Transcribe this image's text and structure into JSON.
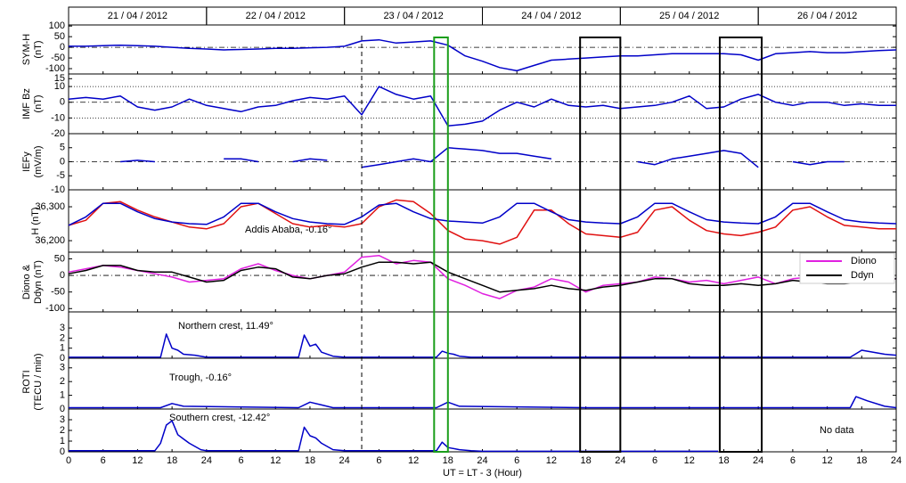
{
  "dates": [
    "21 / 04 / 2012",
    "22 / 04 / 2012",
    "23 / 04 / 2012",
    "24 / 04 / 2012",
    "25 / 04 / 2012",
    "26 / 04 / 2012"
  ],
  "highlights": {
    "dashed": 51,
    "boxes": [
      {
        "xlim": [
          63.6,
          66
        ],
        "color": "#1a9e1a"
      },
      {
        "xlim": [
          89,
          96
        ],
        "color": "#000000"
      },
      {
        "xlim": [
          113.3,
          120.6
        ],
        "color": "#000000"
      }
    ]
  },
  "chart_data": [
    {
      "type": "line",
      "ylabel": [
        "SYM-H",
        "(nT)"
      ],
      "ylim": [
        -125,
        105
      ],
      "yticks": [
        100,
        50,
        0,
        -50,
        -100
      ],
      "hlines": [
        0
      ],
      "x": [
        0,
        3,
        6,
        9,
        12,
        15,
        18,
        21,
        24,
        27,
        30,
        33,
        36,
        39,
        42,
        45,
        48,
        51,
        54,
        57,
        60,
        63,
        66,
        69,
        72,
        75,
        78,
        81,
        84,
        87,
        90,
        93,
        96,
        99,
        102,
        105,
        108,
        111,
        114,
        117,
        120,
        123,
        126,
        129,
        132,
        135,
        138,
        141,
        144
      ],
      "series": [
        {
          "color": "#0000c8",
          "values": [
            5,
            5,
            8,
            10,
            8,
            5,
            0,
            -5,
            -8,
            -12,
            -10,
            -8,
            -5,
            -5,
            -2,
            0,
            5,
            30,
            35,
            20,
            25,
            30,
            10,
            -40,
            -65,
            -95,
            -110,
            -85,
            -60,
            -55,
            -50,
            -45,
            -40,
            -40,
            -35,
            -30,
            -30,
            -30,
            -30,
            -35,
            -60,
            -30,
            -25,
            -20,
            -25,
            -25,
            -20,
            -15,
            -12
          ]
        }
      ]
    },
    {
      "type": "line",
      "ylabel": [
        "IMF Bz",
        "(nT)"
      ],
      "ylim": [
        -20,
        18
      ],
      "yticks": [
        15,
        10,
        0,
        -10,
        -20
      ],
      "hlines": [
        10,
        0,
        -10
      ],
      "x": [
        0,
        3,
        6,
        9,
        12,
        15,
        18,
        21,
        24,
        27,
        30,
        33,
        36,
        39,
        42,
        45,
        48,
        51,
        54,
        57,
        60,
        63,
        66,
        69,
        72,
        75,
        78,
        81,
        84,
        87,
        90,
        93,
        96,
        99,
        102,
        105,
        108,
        111,
        114,
        117,
        120,
        123,
        126,
        129,
        132,
        135,
        138,
        141,
        144
      ],
      "series": [
        {
          "color": "#0000c8",
          "values": [
            2,
            3,
            2,
            4,
            -3,
            -5,
            -3,
            2,
            -2,
            -4,
            -6,
            -3,
            -2,
            1,
            3,
            2,
            4,
            -8,
            10,
            5,
            2,
            4,
            -15,
            -14,
            -12,
            -5,
            0,
            -3,
            2,
            -2,
            -3,
            -2,
            -4,
            -3,
            -2,
            0,
            4,
            -4,
            -3,
            2,
            5,
            0,
            -2,
            0,
            0,
            -2,
            -1,
            -2,
            -2
          ]
        }
      ]
    },
    {
      "type": "line",
      "ylabel": [
        "IEFy",
        "(mV/m)"
      ],
      "ylim": [
        -10,
        10
      ],
      "yticks": [
        5,
        0,
        -5,
        -10
      ],
      "hlines": [
        0
      ],
      "x": [
        0,
        3,
        6,
        9,
        12,
        15,
        18,
        21,
        24,
        27,
        30,
        33,
        36,
        39,
        42,
        45,
        48,
        51,
        54,
        57,
        60,
        63,
        66,
        69,
        72,
        75,
        78,
        81,
        84,
        87,
        90,
        93,
        96,
        99,
        102,
        105,
        108,
        111,
        114,
        117,
        120,
        123,
        126,
        129,
        132,
        135,
        138,
        141,
        144
      ],
      "series": [
        {
          "color": "#0000c8",
          "values": [
            null,
            null,
            null,
            0,
            0.5,
            0,
            null,
            null,
            null,
            1,
            1,
            0,
            null,
            0,
            1,
            0.5,
            null,
            -2,
            -1,
            0,
            1,
            0,
            5,
            4.5,
            4,
            3,
            3,
            2,
            1,
            null,
            null,
            null,
            null,
            0,
            -1,
            1,
            2,
            3,
            4,
            3,
            -2,
            null,
            0,
            -1,
            0,
            0,
            null,
            null,
            null
          ]
        }
      ]
    },
    {
      "type": "line",
      "ylabel": [
        "H (nT)"
      ],
      "ylim": [
        36166,
        36350
      ],
      "yticks": [
        {
          "value": 36300,
          "label": "36,300"
        },
        {
          "value": 36200,
          "label": "36,200"
        }
      ],
      "annotations": [
        "Addis Ababa, -0.16°"
      ],
      "x": [
        0,
        3,
        6,
        9,
        12,
        15,
        18,
        21,
        24,
        27,
        30,
        33,
        36,
        39,
        42,
        45,
        48,
        51,
        54,
        57,
        60,
        63,
        66,
        69,
        72,
        75,
        78,
        81,
        84,
        87,
        90,
        93,
        96,
        99,
        102,
        105,
        108,
        111,
        114,
        117,
        120,
        123,
        126,
        129,
        132,
        135,
        138,
        141,
        144
      ],
      "series": [
        {
          "color": "#e01010",
          "values": [
            36245,
            36260,
            36310,
            36315,
            36290,
            36270,
            36255,
            36240,
            36235,
            36250,
            36300,
            36310,
            36280,
            36250,
            36240,
            36245,
            36240,
            36250,
            36300,
            36320,
            36315,
            36280,
            36230,
            36205,
            36200,
            36190,
            36210,
            36290,
            36290,
            36250,
            36220,
            36215,
            36210,
            36225,
            36290,
            36300,
            36260,
            36230,
            36220,
            36215,
            36225,
            36240,
            36290,
            36300,
            36270,
            36245,
            36240,
            36235,
            36235
          ]
        },
        {
          "color": "#0000c8",
          "values": [
            36245,
            36270,
            36310,
            36310,
            36285,
            36265,
            36255,
            36250,
            36248,
            36270,
            36310,
            36310,
            36285,
            36265,
            36255,
            36250,
            36248,
            36270,
            36305,
            36310,
            36285,
            36265,
            36258,
            36255,
            36252,
            36270,
            36310,
            36310,
            36285,
            36262,
            36255,
            36252,
            36250,
            36270,
            36310,
            36310,
            36285,
            36262,
            36255,
            36252,
            36250,
            36270,
            36310,
            36310,
            36285,
            36262,
            36255,
            36252,
            36250
          ]
        }
      ]
    },
    {
      "type": "line",
      "ylabel": [
        "Diono &",
        "Ddyn (nT)"
      ],
      "ylim": [
        -110,
        70
      ],
      "yticks": [
        50,
        0,
        -50,
        -100
      ],
      "hlines": [
        0
      ],
      "x": [
        0,
        3,
        6,
        9,
        12,
        15,
        18,
        21,
        24,
        27,
        30,
        33,
        36,
        39,
        42,
        45,
        48,
        51,
        54,
        57,
        60,
        63,
        66,
        69,
        72,
        75,
        78,
        81,
        84,
        87,
        90,
        93,
        96,
        99,
        102,
        105,
        108,
        111,
        114,
        117,
        120,
        123,
        126,
        129,
        132,
        135,
        138,
        141,
        144
      ],
      "series": [
        {
          "name": "Diono",
          "color": "#e020e0",
          "values": [
            10,
            20,
            30,
            25,
            15,
            5,
            -5,
            -20,
            -15,
            -10,
            20,
            35,
            15,
            0,
            -10,
            0,
            10,
            55,
            60,
            35,
            45,
            40,
            -10,
            -30,
            -55,
            -70,
            -45,
            -35,
            -10,
            -20,
            -50,
            -30,
            -25,
            -20,
            -5,
            -10,
            -20,
            -15,
            -25,
            -15,
            -5,
            -25,
            -10,
            -5,
            -15,
            -20,
            -20,
            -15,
            -10
          ]
        },
        {
          "name": "Ddyn",
          "color": "#000000",
          "values": [
            5,
            15,
            30,
            30,
            15,
            10,
            10,
            -5,
            -20,
            -15,
            15,
            25,
            20,
            -5,
            -10,
            0,
            5,
            25,
            40,
            40,
            35,
            40,
            10,
            -10,
            -30,
            -50,
            -45,
            -40,
            -30,
            -40,
            -45,
            -35,
            -30,
            -20,
            -10,
            -10,
            -25,
            -30,
            -30,
            -25,
            -30,
            -25,
            -15,
            -20,
            -25,
            -25,
            -20,
            -15,
            -10
          ]
        }
      ]
    },
    {
      "type": "line",
      "ylim": [
        0,
        4.6
      ],
      "yticks": [
        3,
        2,
        1,
        0
      ],
      "annotations": [
        "Northern crest, 11.49°"
      ],
      "x": [
        0,
        12,
        16,
        17,
        18,
        19,
        20,
        22,
        24,
        36,
        40,
        41,
        42,
        43,
        44,
        46,
        48,
        60,
        64,
        65,
        66,
        67,
        68,
        70,
        72,
        90,
        136,
        138,
        140,
        142,
        144
      ],
      "series": [
        {
          "color": "#0000c8",
          "values": [
            0.1,
            0.1,
            0.1,
            2.4,
            1.0,
            0.8,
            0.4,
            0.3,
            0.1,
            0.1,
            0.1,
            2.3,
            1.2,
            1.4,
            0.6,
            0.2,
            0.1,
            0.1,
            0.1,
            0.7,
            0.5,
            0.4,
            0.2,
            0.1,
            0.1,
            0.1,
            0.1,
            0.8,
            0.6,
            0.4,
            0.3
          ]
        }
      ]
    },
    {
      "type": "line",
      "ylabel": [
        "ROTI",
        "(TECU / min)"
      ],
      "ylim": [
        0,
        3.7
      ],
      "yticks": [
        3,
        2,
        1,
        0
      ],
      "annotations": [
        "Trough, -0.16°"
      ],
      "x": [
        0,
        16,
        18,
        20,
        40,
        42,
        44,
        46,
        64,
        66,
        68,
        90,
        136,
        137,
        139,
        142,
        144
      ],
      "series": [
        {
          "color": "#0000c8",
          "values": [
            0.1,
            0.1,
            0.4,
            0.2,
            0.1,
            0.5,
            0.3,
            0.1,
            0.1,
            0.5,
            0.2,
            0.1,
            0.1,
            0.9,
            0.6,
            0.2,
            0.1
          ]
        }
      ]
    },
    {
      "type": "line",
      "ylim": [
        0,
        4
      ],
      "yticks": [
        3,
        2,
        1,
        0
      ],
      "annotations": [
        "Southern crest, -12.42°",
        "No data"
      ],
      "xlabel": "UT = LT - 3 (Hour)",
      "xlim": [
        0,
        144
      ],
      "xticks": [
        0,
        6,
        12,
        18,
        24,
        {
          "value": 30,
          "label": "6"
        },
        {
          "value": 36,
          "label": "12"
        },
        {
          "value": 42,
          "label": "18"
        },
        {
          "value": 48,
          "label": "24"
        },
        {
          "value": 54,
          "label": "6"
        },
        {
          "value": 60,
          "label": "12"
        },
        {
          "value": 66,
          "label": "18"
        },
        {
          "value": 72,
          "label": "24"
        },
        {
          "value": 78,
          "label": "6"
        },
        {
          "value": 84,
          "label": "12"
        },
        {
          "value": 90,
          "label": "18"
        },
        {
          "value": 96,
          "label": "24"
        },
        {
          "value": 102,
          "label": "6"
        },
        {
          "value": 108,
          "label": "12"
        },
        {
          "value": 114,
          "label": "18"
        },
        {
          "value": 120,
          "label": "24"
        },
        {
          "value": 126,
          "label": "6"
        },
        {
          "value": 132,
          "label": "12"
        },
        {
          "value": 138,
          "label": "18"
        },
        {
          "value": 144,
          "label": "24"
        }
      ],
      "x": [
        0,
        15,
        16,
        17,
        18,
        19,
        20,
        21,
        23,
        24,
        40,
        41,
        42,
        43,
        44,
        46,
        48,
        64,
        65,
        66,
        68,
        70,
        72,
        90,
        100,
        113
      ],
      "series": [
        {
          "color": "#0000c8",
          "values": [
            0.1,
            0.1,
            0.8,
            2.5,
            2.9,
            1.6,
            1.2,
            0.8,
            0.2,
            0.1,
            0.1,
            2.3,
            1.5,
            1.3,
            0.8,
            0.2,
            0.1,
            0.1,
            0.9,
            0.4,
            0.2,
            0.1,
            0.05,
            0.05,
            0.05,
            0.05
          ]
        }
      ]
    }
  ]
}
